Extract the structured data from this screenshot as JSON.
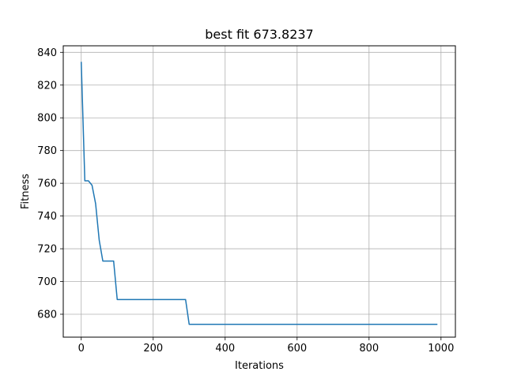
{
  "chart_data": {
    "type": "line",
    "title": "best fit 673.8237",
    "xlabel": "Iterations",
    "ylabel": "Fitness",
    "xlim": [
      -50,
      1040
    ],
    "ylim": [
      666,
      844
    ],
    "xticks": [
      0,
      200,
      400,
      600,
      800,
      1000
    ],
    "yticks": [
      680,
      700,
      720,
      740,
      760,
      780,
      800,
      820,
      840
    ],
    "grid": true,
    "legend": "none",
    "line_color": "#1f77b4",
    "series": [
      {
        "x": [
          0,
          10,
          20,
          30,
          40,
          50,
          60,
          70,
          80,
          90,
          100,
          110,
          290,
          300,
          990
        ],
        "values": [
          834.2,
          761.5,
          761.5,
          758.8,
          747.5,
          725.2,
          712.5,
          712.5,
          712.5,
          712.5,
          689.0,
          689.0,
          689.0,
          673.8237,
          673.8237
        ]
      }
    ]
  }
}
